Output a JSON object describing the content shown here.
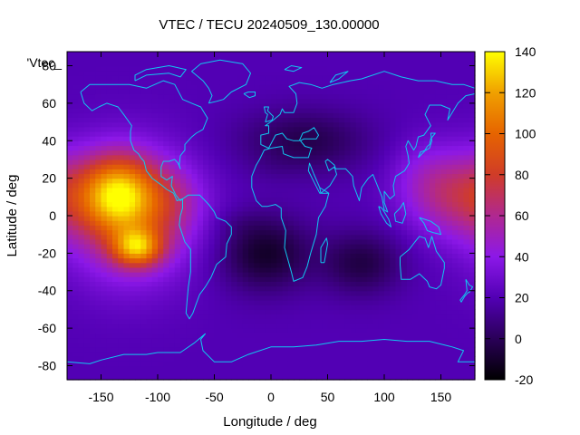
{
  "chart_data": {
    "type": "heatmap",
    "title": "VTEC / TECU 20240509_130.00000",
    "xlabel": "Longitude / deg",
    "ylabel": "Latitude / deg",
    "xlim": [
      -180,
      180
    ],
    "ylim": [
      -87.5,
      87.5
    ],
    "x_ticks": [
      -150,
      -100,
      -50,
      0,
      50,
      100,
      150
    ],
    "y_ticks": [
      -80,
      -60,
      -40,
      -20,
      0,
      20,
      40,
      60,
      80
    ],
    "key_label": "'Vtec_",
    "colorbar": {
      "range": [
        -20,
        140
      ],
      "ticks": [
        -20,
        0,
        20,
        40,
        60,
        80,
        100,
        120,
        140
      ],
      "palette": [
        "#000000",
        "#2a0058",
        "#5200b4",
        "#8c18e8",
        "#b02890",
        "#d03c28",
        "#e66400",
        "#f0a000",
        "#ffff00"
      ]
    },
    "features": [
      {
        "lon": -135,
        "lat": 12,
        "vtec": 95,
        "sigma_lon": 22,
        "sigma_lat": 14
      },
      {
        "lon": -118,
        "lat": -17,
        "vtec": 90,
        "sigma_lon": 15,
        "sigma_lat": 7
      },
      {
        "lon": -125,
        "lat": 0,
        "vtec": 70,
        "sigma_lon": 38,
        "sigma_lat": 24
      },
      {
        "lon": -90,
        "lat": 8,
        "vtec": 40,
        "sigma_lon": 22,
        "sigma_lat": 14
      },
      {
        "lon": 165,
        "lat": 12,
        "vtec": 62,
        "sigma_lon": 30,
        "sigma_lat": 16
      },
      {
        "lon": 130,
        "lat": 22,
        "vtec": 30,
        "sigma_lon": 20,
        "sigma_lat": 14
      },
      {
        "lon": -30,
        "lat": -4,
        "vtec": 16,
        "sigma_lon": 18,
        "sigma_lat": 5
      },
      {
        "lon": 0,
        "lat": 25,
        "vtec": 18,
        "sigma_lon": 14,
        "sigma_lat": 5
      },
      {
        "lon": -5,
        "lat": -20,
        "vtec": -14,
        "sigma_lon": 28,
        "sigma_lat": 14
      },
      {
        "lon": 80,
        "lat": -25,
        "vtec": -7,
        "sigma_lon": 25,
        "sigma_lat": 12
      },
      {
        "lon": 30,
        "lat": 40,
        "vtec": -5,
        "sigma_lon": 40,
        "sigma_lat": 12
      }
    ],
    "background_vtec": 20,
    "grid": false
  },
  "colors": {
    "coastline": "#10c8f0",
    "axis": "#000000"
  }
}
